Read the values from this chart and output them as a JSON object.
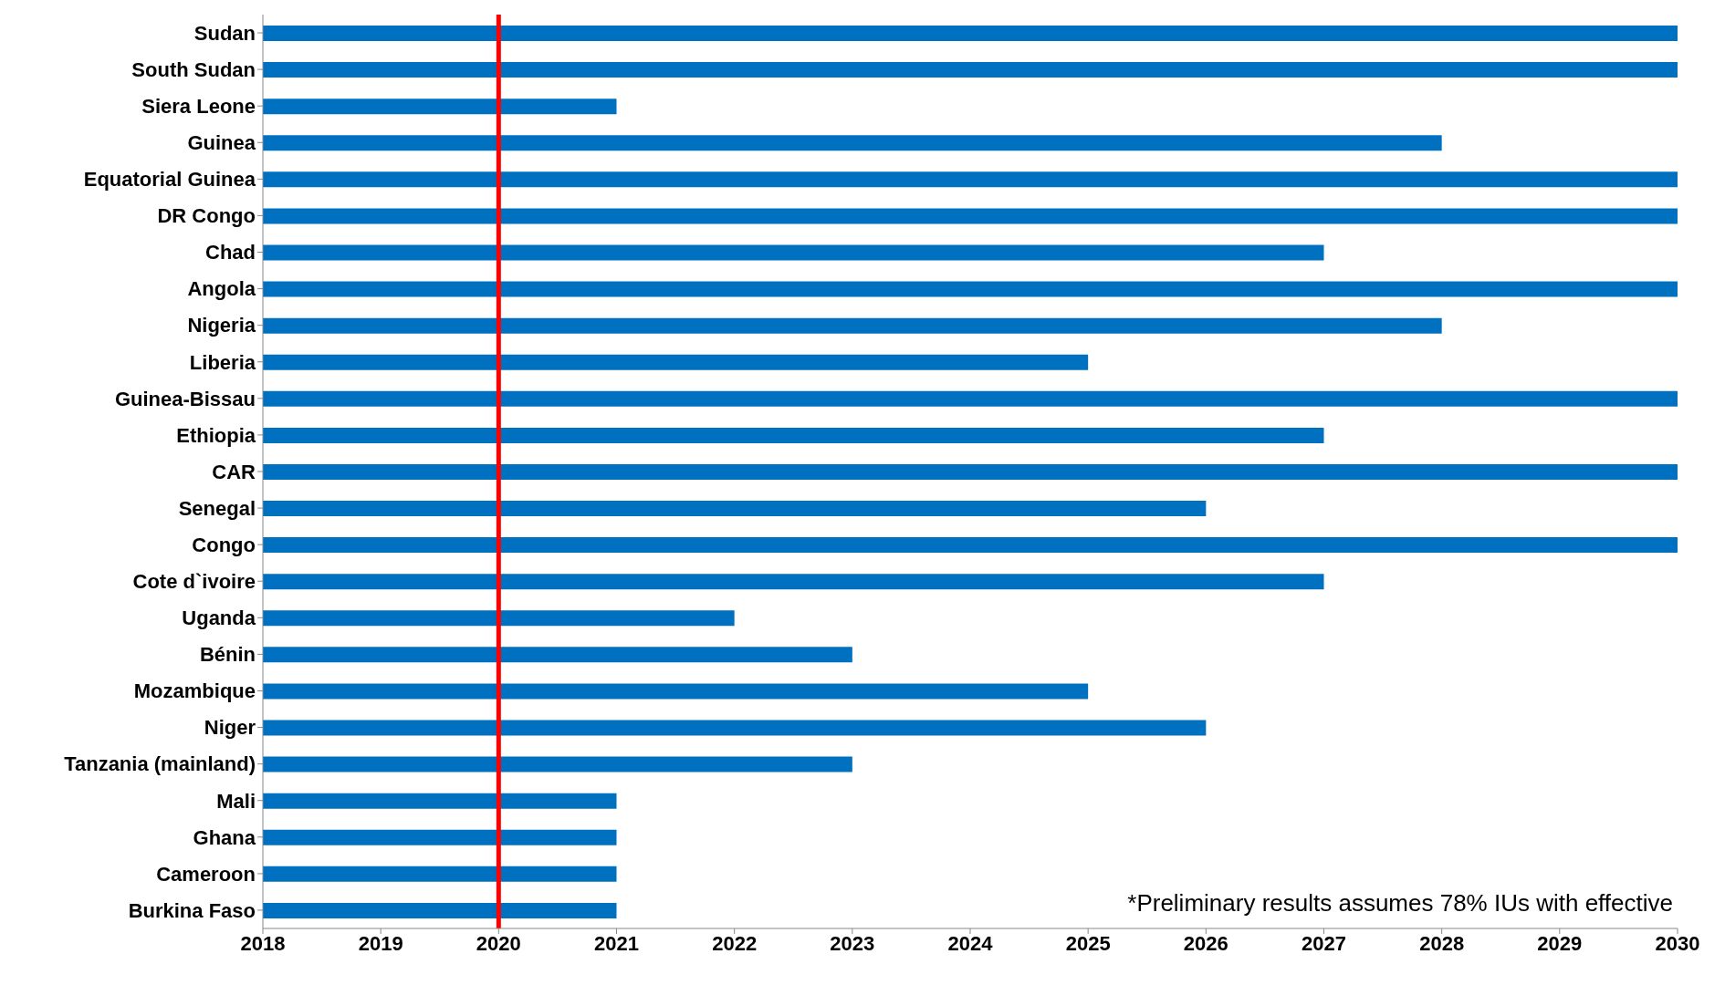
{
  "chart_data": {
    "type": "bar",
    "orientation": "horizontal",
    "categories": [
      "Sudan",
      "South Sudan",
      "Siera Leone",
      "Guinea",
      "Equatorial Guinea",
      "DR Congo",
      "Chad",
      "Angola",
      "Nigeria",
      "Liberia",
      "Guinea-Bissau",
      "Ethiopia",
      "CAR",
      "Senegal",
      "Congo",
      "Cote d`ivoire",
      "Uganda",
      "Bénin",
      "Mozambique",
      "Niger",
      "Tanzania (mainland)",
      "Mali",
      "Ghana",
      "Cameroon",
      "Burkina Faso"
    ],
    "values": [
      2030,
      2030,
      2021,
      2028,
      2030,
      2030,
      2027,
      2030,
      2028,
      2025,
      2030,
      2027,
      2030,
      2026,
      2030,
      2027,
      2022,
      2023,
      2025,
      2026,
      2023,
      2021,
      2021,
      2021,
      2021
    ],
    "color": "#0070c0",
    "xlim": [
      2018,
      2030
    ],
    "xticks": [
      2018,
      2019,
      2020,
      2021,
      2022,
      2023,
      2024,
      2025,
      2026,
      2027,
      2028,
      2029,
      2030
    ],
    "ref_lines": [
      {
        "axis": "x",
        "value": 2020,
        "color": "#ff0000"
      }
    ],
    "annotations": [
      "*Preliminary results assumes 78% IUs with effective"
    ],
    "grid": false,
    "legend": false
  }
}
